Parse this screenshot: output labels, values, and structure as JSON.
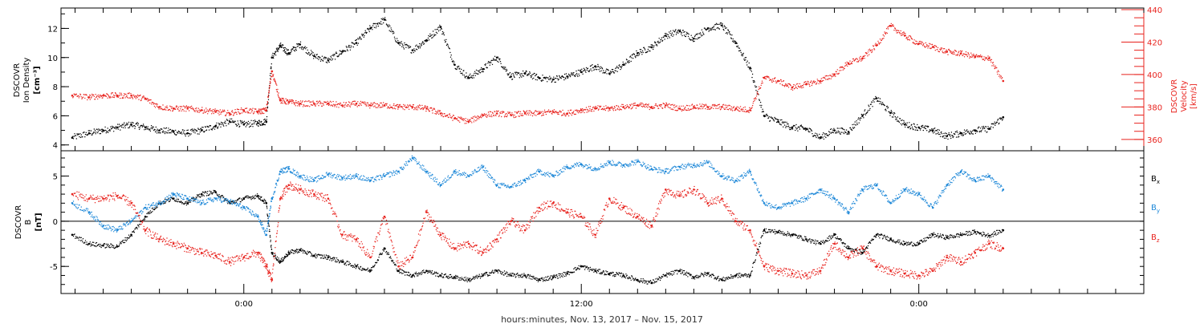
{
  "chart_data": [
    {
      "type": "scatter",
      "panel": "top",
      "ylabel_left": [
        "DSCOVR",
        "Ion Density",
        "[cm⁻³]"
      ],
      "ylabel_right": [
        "DSCOVR",
        "Velocity",
        "[km/s]"
      ],
      "ylim_left": [
        3.6,
        13.4
      ],
      "ylim_right": [
        353,
        441
      ],
      "yticks_left": [
        "4",
        "6",
        "8",
        "10",
        "12"
      ],
      "yticks_right": [
        "360",
        "380",
        "400",
        "420",
        "440"
      ],
      "left_axis_color": "#000000",
      "right_axis_color": "#e8231e",
      "series": [
        {
          "axis": "left",
          "color": "#000000",
          "x": [
            -6.1,
            -5.5,
            -5.0,
            -4.5,
            -4.0,
            -3.5,
            -3.0,
            -2.5,
            -2.0,
            -1.5,
            -1.0,
            -0.5,
            0.0,
            0.5,
            0.8,
            1.0,
            1.3,
            1.6,
            2.0,
            2.5,
            3.0,
            3.5,
            4.0,
            4.5,
            5.0,
            5.5,
            6.0,
            6.5,
            7.0,
            7.5,
            8.0,
            8.5,
            9.0,
            9.5,
            10.0,
            10.5,
            11.0,
            11.5,
            12.0,
            12.5,
            13.0,
            13.5,
            14.0,
            14.5,
            15.0,
            15.5,
            16.0,
            16.5,
            17.0,
            17.5,
            18.0,
            18.5,
            19.0,
            19.5,
            20.0,
            20.5,
            21.0,
            21.5,
            22.0,
            22.5,
            23.0,
            23.5,
            24.0,
            24.5,
            25.0,
            25.5,
            26.0,
            26.5,
            27.0
          ],
          "y": [
            4.5,
            4.8,
            5.0,
            5.2,
            5.4,
            5.2,
            5.0,
            4.9,
            4.8,
            5.0,
            5.3,
            5.6,
            5.4,
            5.5,
            5.6,
            10.0,
            10.8,
            10.3,
            10.9,
            10.1,
            9.8,
            10.4,
            11.0,
            12.0,
            12.6,
            11.0,
            10.5,
            11.2,
            12.1,
            9.5,
            8.6,
            9.2,
            10.0,
            8.7,
            8.9,
            8.6,
            8.5,
            8.7,
            9.0,
            9.4,
            8.9,
            9.5,
            10.3,
            10.7,
            11.5,
            11.8,
            11.3,
            12.0,
            12.2,
            11.0,
            9.3,
            6.0,
            5.6,
            5.2,
            5.1,
            4.5,
            5.0,
            4.9,
            6.0,
            7.2,
            6.2,
            5.4,
            5.2,
            5.0,
            4.6,
            4.8,
            5.0,
            5.1,
            5.9
          ]
        },
        {
          "axis": "right",
          "color": "#e8231e",
          "x": [
            -6.1,
            -5.5,
            -5.0,
            -4.5,
            -4.0,
            -3.5,
            -3.0,
            -2.5,
            -2.0,
            -1.5,
            -1.0,
            -0.5,
            0.0,
            0.5,
            0.8,
            1.0,
            1.3,
            1.6,
            2.0,
            2.5,
            3.0,
            3.5,
            4.0,
            4.5,
            5.0,
            5.5,
            6.0,
            6.5,
            7.0,
            7.5,
            8.0,
            8.5,
            9.0,
            9.5,
            10.0,
            10.5,
            11.0,
            11.5,
            12.0,
            12.5,
            13.0,
            13.5,
            14.0,
            14.5,
            15.0,
            15.5,
            16.0,
            16.5,
            17.0,
            17.5,
            18.0,
            18.5,
            19.0,
            19.5,
            20.0,
            20.5,
            21.0,
            21.5,
            22.0,
            22.5,
            23.0,
            23.5,
            24.0,
            24.5,
            25.0,
            25.5,
            26.0,
            26.5,
            27.0
          ],
          "y": [
            387,
            386,
            387,
            387,
            387,
            385,
            380,
            379,
            379,
            378,
            377,
            376,
            378,
            377,
            378,
            402,
            384,
            383,
            382,
            382,
            382,
            381,
            382,
            381,
            381,
            380,
            380,
            379,
            376,
            373,
            371,
            375,
            376,
            375,
            376,
            376,
            377,
            376,
            378,
            379,
            379,
            380,
            381,
            380,
            381,
            379,
            380,
            380,
            380,
            379,
            378,
            398,
            396,
            392,
            394,
            396,
            400,
            407,
            410,
            418,
            430,
            424,
            419,
            417,
            414,
            413,
            411,
            410,
            396
          ]
        }
      ]
    },
    {
      "type": "scatter",
      "panel": "bottom",
      "ylabel_left": [
        "DSCOVR",
        "B",
        "[nT]"
      ],
      "ylim": [
        -8,
        7.8
      ],
      "yticks": [
        "-5",
        "0",
        "5"
      ],
      "zero_line": true,
      "legend_placement": "right",
      "legend": [
        {
          "name": "Bx",
          "color": "#000000"
        },
        {
          "name": "By",
          "color": "#1e88d8"
        },
        {
          "name": "Bz",
          "color": "#e8231e"
        }
      ],
      "series": [
        {
          "name": "Bx",
          "color": "#000000",
          "x": [
            -6.1,
            -5.5,
            -5.0,
            -4.5,
            -4.0,
            -3.5,
            -3.0,
            -2.5,
            -2.0,
            -1.5,
            -1.0,
            -0.5,
            0.0,
            0.5,
            0.8,
            1.0,
            1.3,
            1.6,
            2.0,
            2.5,
            3.0,
            3.5,
            4.0,
            4.5,
            5.0,
            5.5,
            6.0,
            6.5,
            7.0,
            7.5,
            8.0,
            8.5,
            9.0,
            9.5,
            10.0,
            10.5,
            11.0,
            11.5,
            12.0,
            12.5,
            13.0,
            13.5,
            14.0,
            14.5,
            15.0,
            15.5,
            16.0,
            16.5,
            17.0,
            17.5,
            18.0,
            18.5,
            19.0,
            19.5,
            20.0,
            20.5,
            21.0,
            21.5,
            22.0,
            22.5,
            23.0,
            23.5,
            24.0,
            24.5,
            25.0,
            25.5,
            26.0,
            26.5,
            27.0
          ],
          "y": [
            -1.5,
            -2.5,
            -2.7,
            -2.8,
            -1.5,
            0.5,
            2.0,
            2.5,
            2.0,
            3.0,
            3.2,
            2.0,
            2.5,
            2.8,
            2.0,
            -3.5,
            -4.5,
            -3.5,
            -3.2,
            -3.8,
            -4.0,
            -4.5,
            -5.0,
            -5.5,
            -3.0,
            -5.5,
            -6.0,
            -5.5,
            -6.0,
            -6.2,
            -6.5,
            -6.0,
            -5.5,
            -6.0,
            -6.0,
            -6.5,
            -6.2,
            -5.8,
            -5.0,
            -5.5,
            -5.8,
            -6.0,
            -6.5,
            -6.8,
            -6.0,
            -5.5,
            -6.2,
            -5.8,
            -6.5,
            -6.0,
            -6.0,
            -1.0,
            -1.2,
            -1.5,
            -2.0,
            -2.5,
            -1.5,
            -3.0,
            -3.5,
            -1.5,
            -2.0,
            -2.5,
            -2.5,
            -1.5,
            -1.8,
            -1.5,
            -1.2,
            -1.6,
            -1.0
          ]
        },
        {
          "name": "By",
          "color": "#1e88d8",
          "x": [
            -6.1,
            -5.5,
            -5.0,
            -4.5,
            -4.0,
            -3.5,
            -3.0,
            -2.5,
            -2.0,
            -1.5,
            -1.0,
            -0.5,
            0.0,
            0.5,
            0.8,
            1.0,
            1.3,
            1.6,
            2.0,
            2.5,
            3.0,
            3.5,
            4.0,
            4.5,
            5.0,
            5.5,
            6.0,
            6.5,
            7.0,
            7.5,
            8.0,
            8.5,
            9.0,
            9.5,
            10.0,
            10.5,
            11.0,
            11.5,
            12.0,
            12.5,
            13.0,
            13.5,
            14.0,
            14.5,
            15.0,
            15.5,
            16.0,
            16.5,
            17.0,
            17.5,
            18.0,
            18.5,
            19.0,
            19.5,
            20.0,
            20.5,
            21.0,
            21.5,
            22.0,
            22.5,
            23.0,
            23.5,
            24.0,
            24.5,
            25.0,
            25.5,
            26.0,
            26.5,
            27.0
          ],
          "y": [
            2.0,
            1.0,
            -0.5,
            -1.0,
            0.0,
            1.5,
            2.0,
            3.0,
            2.5,
            2.0,
            2.5,
            2.2,
            1.5,
            0.5,
            -1.5,
            2.5,
            5.5,
            5.8,
            5.0,
            4.5,
            5.2,
            4.8,
            5.0,
            4.5,
            5.0,
            5.5,
            7.0,
            5.5,
            4.0,
            5.5,
            5.0,
            6.0,
            4.0,
            3.8,
            4.5,
            5.5,
            5.0,
            6.0,
            6.3,
            5.8,
            6.5,
            6.2,
            6.6,
            5.8,
            5.5,
            6.0,
            6.2,
            6.5,
            5.0,
            4.5,
            5.5,
            2.0,
            1.5,
            2.0,
            2.5,
            3.5,
            2.5,
            1.0,
            3.5,
            4.0,
            2.0,
            3.5,
            3.0,
            1.5,
            4.0,
            5.5,
            4.5,
            5.0,
            3.5
          ]
        },
        {
          "name": "Bz",
          "color": "#e8231e",
          "x": [
            -6.1,
            -5.5,
            -5.0,
            -4.5,
            -4.0,
            -3.5,
            -3.0,
            -2.5,
            -2.0,
            -1.5,
            -1.0,
            -0.5,
            0.0,
            0.5,
            0.8,
            1.0,
            1.3,
            1.6,
            2.0,
            2.5,
            3.0,
            3.5,
            4.0,
            4.5,
            5.0,
            5.5,
            6.0,
            6.5,
            7.0,
            7.5,
            8.0,
            8.5,
            9.0,
            9.5,
            10.0,
            10.5,
            11.0,
            11.5,
            12.0,
            12.5,
            13.0,
            13.5,
            14.0,
            14.5,
            15.0,
            15.5,
            16.0,
            16.5,
            17.0,
            17.5,
            18.0,
            18.5,
            19.0,
            19.5,
            20.0,
            20.5,
            21.0,
            21.5,
            22.0,
            22.5,
            23.0,
            23.5,
            24.0,
            24.5,
            25.0,
            25.5,
            26.0,
            26.5,
            27.0
          ],
          "y": [
            3.0,
            2.5,
            2.5,
            2.8,
            2.0,
            -1.0,
            -2.0,
            -2.5,
            -3.0,
            -3.5,
            -3.8,
            -4.5,
            -4.0,
            -3.5,
            -5.0,
            -6.5,
            2.5,
            4.0,
            3.5,
            3.0,
            2.5,
            -1.5,
            -2.0,
            -4.0,
            0.5,
            -5.0,
            -4.0,
            1.0,
            -1.5,
            -3.0,
            -2.5,
            -3.5,
            -2.0,
            0.0,
            -1.0,
            1.5,
            2.0,
            1.0,
            0.5,
            -1.5,
            2.5,
            1.5,
            0.5,
            -0.5,
            3.5,
            2.8,
            3.5,
            2.0,
            2.5,
            0.0,
            -1.0,
            -5.0,
            -5.5,
            -5.8,
            -6.0,
            -5.5,
            -2.5,
            -4.0,
            -3.0,
            -5.0,
            -5.5,
            -5.8,
            -6.0,
            -5.5,
            -4.0,
            -4.5,
            -3.5,
            -2.5,
            -3.0
          ]
        }
      ]
    },
    {
      "type": "axis",
      "xlabel": "hours:minutes, Nov. 13, 2017 – Nov. 15, 2017",
      "xlim": [
        -6.5,
        32.0
      ],
      "xticks": [
        {
          "x": 0,
          "label": "0:00"
        },
        {
          "x": 12,
          "label": "12:00"
        },
        {
          "x": 24,
          "label": "0:00"
        }
      ],
      "minor_tick_hours": 1
    }
  ]
}
